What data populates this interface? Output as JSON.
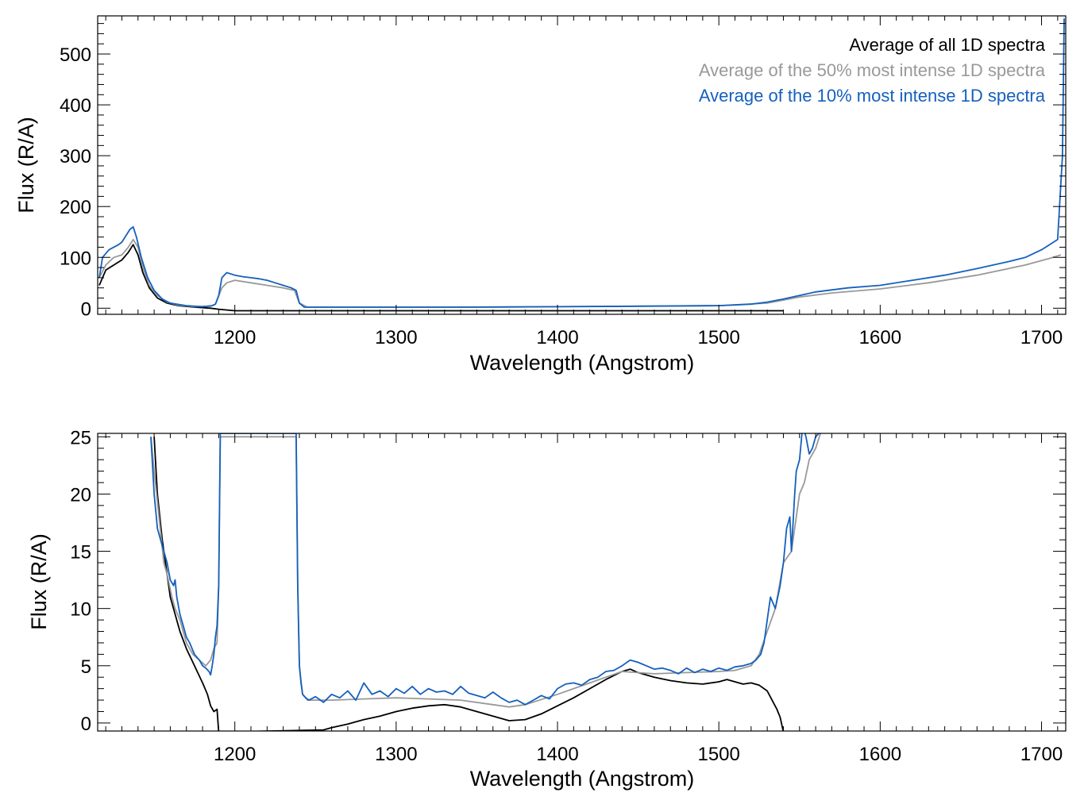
{
  "colors": {
    "all": "#000000",
    "p50": "#999999",
    "p10": "#1560BD",
    "axis": "#000000"
  },
  "legend": [
    {
      "series": "all",
      "label": "Average of all 1D spectra"
    },
    {
      "series": "p50",
      "label": "Average of the 50% most intense 1D spectra"
    },
    {
      "series": "p10",
      "label": "Average of the 10% most intense 1D spectra"
    }
  ],
  "chart_data": [
    {
      "type": "line",
      "title": "",
      "xlabel": "Wavelength (Angstrom)",
      "ylabel": "Flux (R/A)",
      "xlim": [
        1115,
        1715
      ],
      "ylim": [
        -12,
        575
      ],
      "xticks": [
        1200,
        1300,
        1400,
        1500,
        1600,
        1700
      ],
      "yticks": [
        0,
        100,
        200,
        300,
        400,
        500
      ],
      "legend_position": "top-right",
      "series": [
        {
          "name": "Average of all 1D spectra",
          "key": "all",
          "x": [
            1116,
            1120,
            1125,
            1130,
            1134,
            1137,
            1140,
            1143,
            1147,
            1152,
            1158,
            1165,
            1175,
            1185,
            1190,
            1200,
            1250,
            1300,
            1350,
            1400,
            1450,
            1500,
            1530,
            1540
          ],
          "y": [
            45,
            75,
            85,
            95,
            110,
            125,
            105,
            70,
            40,
            20,
            10,
            5,
            2,
            0,
            -2,
            -5,
            -5,
            -5,
            -5,
            -5,
            -5,
            -5,
            -5,
            -5
          ]
        },
        {
          "name": "Average of the 50% most intense 1D spectra",
          "key": "p50",
          "x": [
            1116,
            1120,
            1125,
            1130,
            1134,
            1137,
            1140,
            1143,
            1147,
            1152,
            1158,
            1165,
            1175,
            1185,
            1188,
            1192,
            1195,
            1200,
            1210,
            1220,
            1230,
            1237,
            1240,
            1245,
            1300,
            1400,
            1500,
            1530,
            1550,
            1570,
            1600,
            1630,
            1660,
            1690,
            1705,
            1712
          ],
          "y": [
            60,
            85,
            100,
            105,
            120,
            135,
            120,
            80,
            45,
            25,
            12,
            6,
            3,
            4,
            8,
            40,
            50,
            55,
            50,
            45,
            40,
            35,
            10,
            2,
            2,
            3,
            5,
            10,
            22,
            30,
            38,
            50,
            65,
            85,
            98,
            105
          ]
        },
        {
          "name": "Average of the 10% most intense 1D spectra",
          "key": "p10",
          "x": [
            1116,
            1118,
            1122,
            1125,
            1128,
            1130,
            1133,
            1135,
            1137,
            1139,
            1142,
            1146,
            1150,
            1155,
            1160,
            1170,
            1180,
            1186,
            1188,
            1190,
            1192,
            1195,
            1200,
            1205,
            1210,
            1215,
            1220,
            1225,
            1230,
            1235,
            1238,
            1240,
            1243,
            1250,
            1300,
            1350,
            1400,
            1450,
            1500,
            1520,
            1530,
            1540,
            1550,
            1560,
            1580,
            1600,
            1620,
            1640,
            1660,
            1680,
            1690,
            1700,
            1705,
            1710,
            1713,
            1714
          ],
          "y": [
            60,
            100,
            115,
            120,
            125,
            130,
            145,
            155,
            160,
            140,
            100,
            60,
            35,
            18,
            10,
            5,
            3,
            5,
            8,
            25,
            60,
            70,
            65,
            62,
            60,
            58,
            55,
            50,
            45,
            40,
            35,
            10,
            2,
            2,
            2,
            2,
            3,
            4,
            5,
            8,
            12,
            18,
            25,
            32,
            40,
            45,
            55,
            65,
            78,
            92,
            100,
            115,
            125,
            135,
            300,
            570
          ]
        }
      ]
    },
    {
      "type": "line",
      "title": "",
      "xlabel": "Wavelength (Angstrom)",
      "ylabel": "Flux (R/A)",
      "xlim": [
        1115,
        1715
      ],
      "ylim": [
        -0.7,
        25.3
      ],
      "xticks": [
        1200,
        1300,
        1400,
        1500,
        1600,
        1700
      ],
      "yticks": [
        0,
        5,
        10,
        15,
        20,
        25
      ],
      "series": [
        {
          "name": "Average of all 1D spectra",
          "key": "all",
          "x": [
            1150,
            1152,
            1155,
            1158,
            1160,
            1163,
            1166,
            1170,
            1175,
            1180,
            1183,
            1185,
            1187,
            1189,
            1190,
            1255,
            1260,
            1270,
            1280,
            1290,
            1300,
            1310,
            1320,
            1330,
            1340,
            1350,
            1360,
            1370,
            1380,
            1390,
            1400,
            1410,
            1420,
            1430,
            1440,
            1445,
            1450,
            1460,
            1470,
            1480,
            1490,
            1500,
            1505,
            1510,
            1515,
            1520,
            1525,
            1530,
            1533,
            1536,
            1538,
            1540
          ],
          "y": [
            25,
            20,
            16,
            13,
            11,
            9.5,
            8,
            6.5,
            5,
            3.5,
            2.5,
            1.5,
            1,
            1.2,
            -0.8,
            -0.6,
            -0.4,
            -0.1,
            0.3,
            0.6,
            1,
            1.3,
            1.5,
            1.6,
            1.4,
            1,
            0.6,
            0.2,
            0.3,
            0.8,
            1.5,
            2.2,
            3,
            3.8,
            4.5,
            4.7,
            4.4,
            4,
            3.7,
            3.5,
            3.4,
            3.6,
            3.8,
            3.6,
            3.4,
            3.5,
            3.3,
            2.8,
            2,
            1.2,
            0.5,
            -0.8
          ]
        },
        {
          "name": "Average of the 50% most intense 1D spectra",
          "key": "p50",
          "x": [
            1148,
            1150,
            1153,
            1156,
            1158,
            1161,
            1163,
            1166,
            1170,
            1174,
            1178,
            1182,
            1185,
            1187,
            1189,
            1190,
            1191,
            1238,
            1239,
            1240,
            1242,
            1245,
            1260,
            1280,
            1300,
            1320,
            1340,
            1360,
            1370,
            1380,
            1400,
            1420,
            1440,
            1460,
            1480,
            1500,
            1510,
            1520,
            1525,
            1530,
            1535,
            1540,
            1545,
            1548,
            1550,
            1553,
            1556,
            1560,
            1563
          ],
          "y": [
            25,
            22,
            18,
            14,
            13,
            11,
            10,
            9,
            7,
            6,
            5.5,
            5,
            5.5,
            6.5,
            7,
            12,
            25,
            25,
            12,
            5,
            2.5,
            2,
            2,
            2.1,
            2.2,
            2.1,
            2,
            1.6,
            1.4,
            1.6,
            2.5,
            3.5,
            4.5,
            4.3,
            4.4,
            4.5,
            4.6,
            5,
            6,
            8,
            10,
            14,
            15,
            18,
            20,
            21,
            23,
            24,
            25.3
          ]
        },
        {
          "name": "Average of the 10% most intense 1D spectra",
          "key": "p10",
          "x": [
            1148,
            1150,
            1152,
            1154,
            1156,
            1158,
            1160,
            1162,
            1163,
            1164,
            1166,
            1168,
            1170,
            1172,
            1175,
            1178,
            1180,
            1182,
            1184,
            1185,
            1186,
            1187,
            1188,
            1189,
            1190,
            1191,
            1238,
            1239,
            1240,
            1241,
            1242,
            1244,
            1246,
            1250,
            1255,
            1260,
            1265,
            1270,
            1275,
            1280,
            1285,
            1290,
            1295,
            1300,
            1305,
            1310,
            1315,
            1320,
            1325,
            1330,
            1335,
            1340,
            1345,
            1350,
            1355,
            1360,
            1365,
            1370,
            1375,
            1380,
            1385,
            1390,
            1395,
            1400,
            1405,
            1410,
            1415,
            1420,
            1425,
            1430,
            1435,
            1440,
            1445,
            1450,
            1455,
            1460,
            1465,
            1470,
            1475,
            1480,
            1485,
            1490,
            1495,
            1500,
            1505,
            1510,
            1515,
            1520,
            1523,
            1526,
            1528,
            1530,
            1532,
            1535,
            1538,
            1540,
            1542,
            1544,
            1545,
            1547,
            1548,
            1550,
            1552,
            1554,
            1556,
            1558,
            1560,
            1562,
            1563
          ],
          "y": [
            25,
            20,
            17,
            16,
            15,
            14,
            12.5,
            12,
            12.5,
            11,
            9.5,
            8.5,
            7.5,
            7,
            6,
            5.5,
            5,
            4.8,
            4.5,
            4.2,
            5,
            6,
            7.5,
            8.5,
            12,
            25.3,
            25.3,
            12,
            5,
            3.5,
            2.5,
            2.2,
            2,
            2.3,
            1.8,
            2.5,
            2.2,
            2.8,
            2,
            3.5,
            2.5,
            2.8,
            2.3,
            3,
            2.6,
            3.2,
            2.5,
            3,
            2.7,
            2.8,
            2.5,
            3.2,
            2.6,
            2.4,
            2.2,
            2.7,
            2.2,
            1.8,
            2,
            1.6,
            2,
            2.4,
            2.1,
            3,
            3.4,
            3.5,
            3.3,
            3.8,
            4,
            4.5,
            4.6,
            5,
            5.5,
            5.3,
            5,
            4.7,
            4.8,
            4.6,
            4.3,
            4.8,
            4.4,
            4.7,
            4.5,
            4.8,
            4.6,
            4.9,
            5,
            5.2,
            5.5,
            6,
            7,
            9,
            11,
            10,
            12,
            14,
            17,
            18,
            15,
            20,
            22,
            23,
            26,
            25,
            23.5,
            24,
            25,
            25.3,
            25.3
          ]
        }
      ]
    }
  ]
}
